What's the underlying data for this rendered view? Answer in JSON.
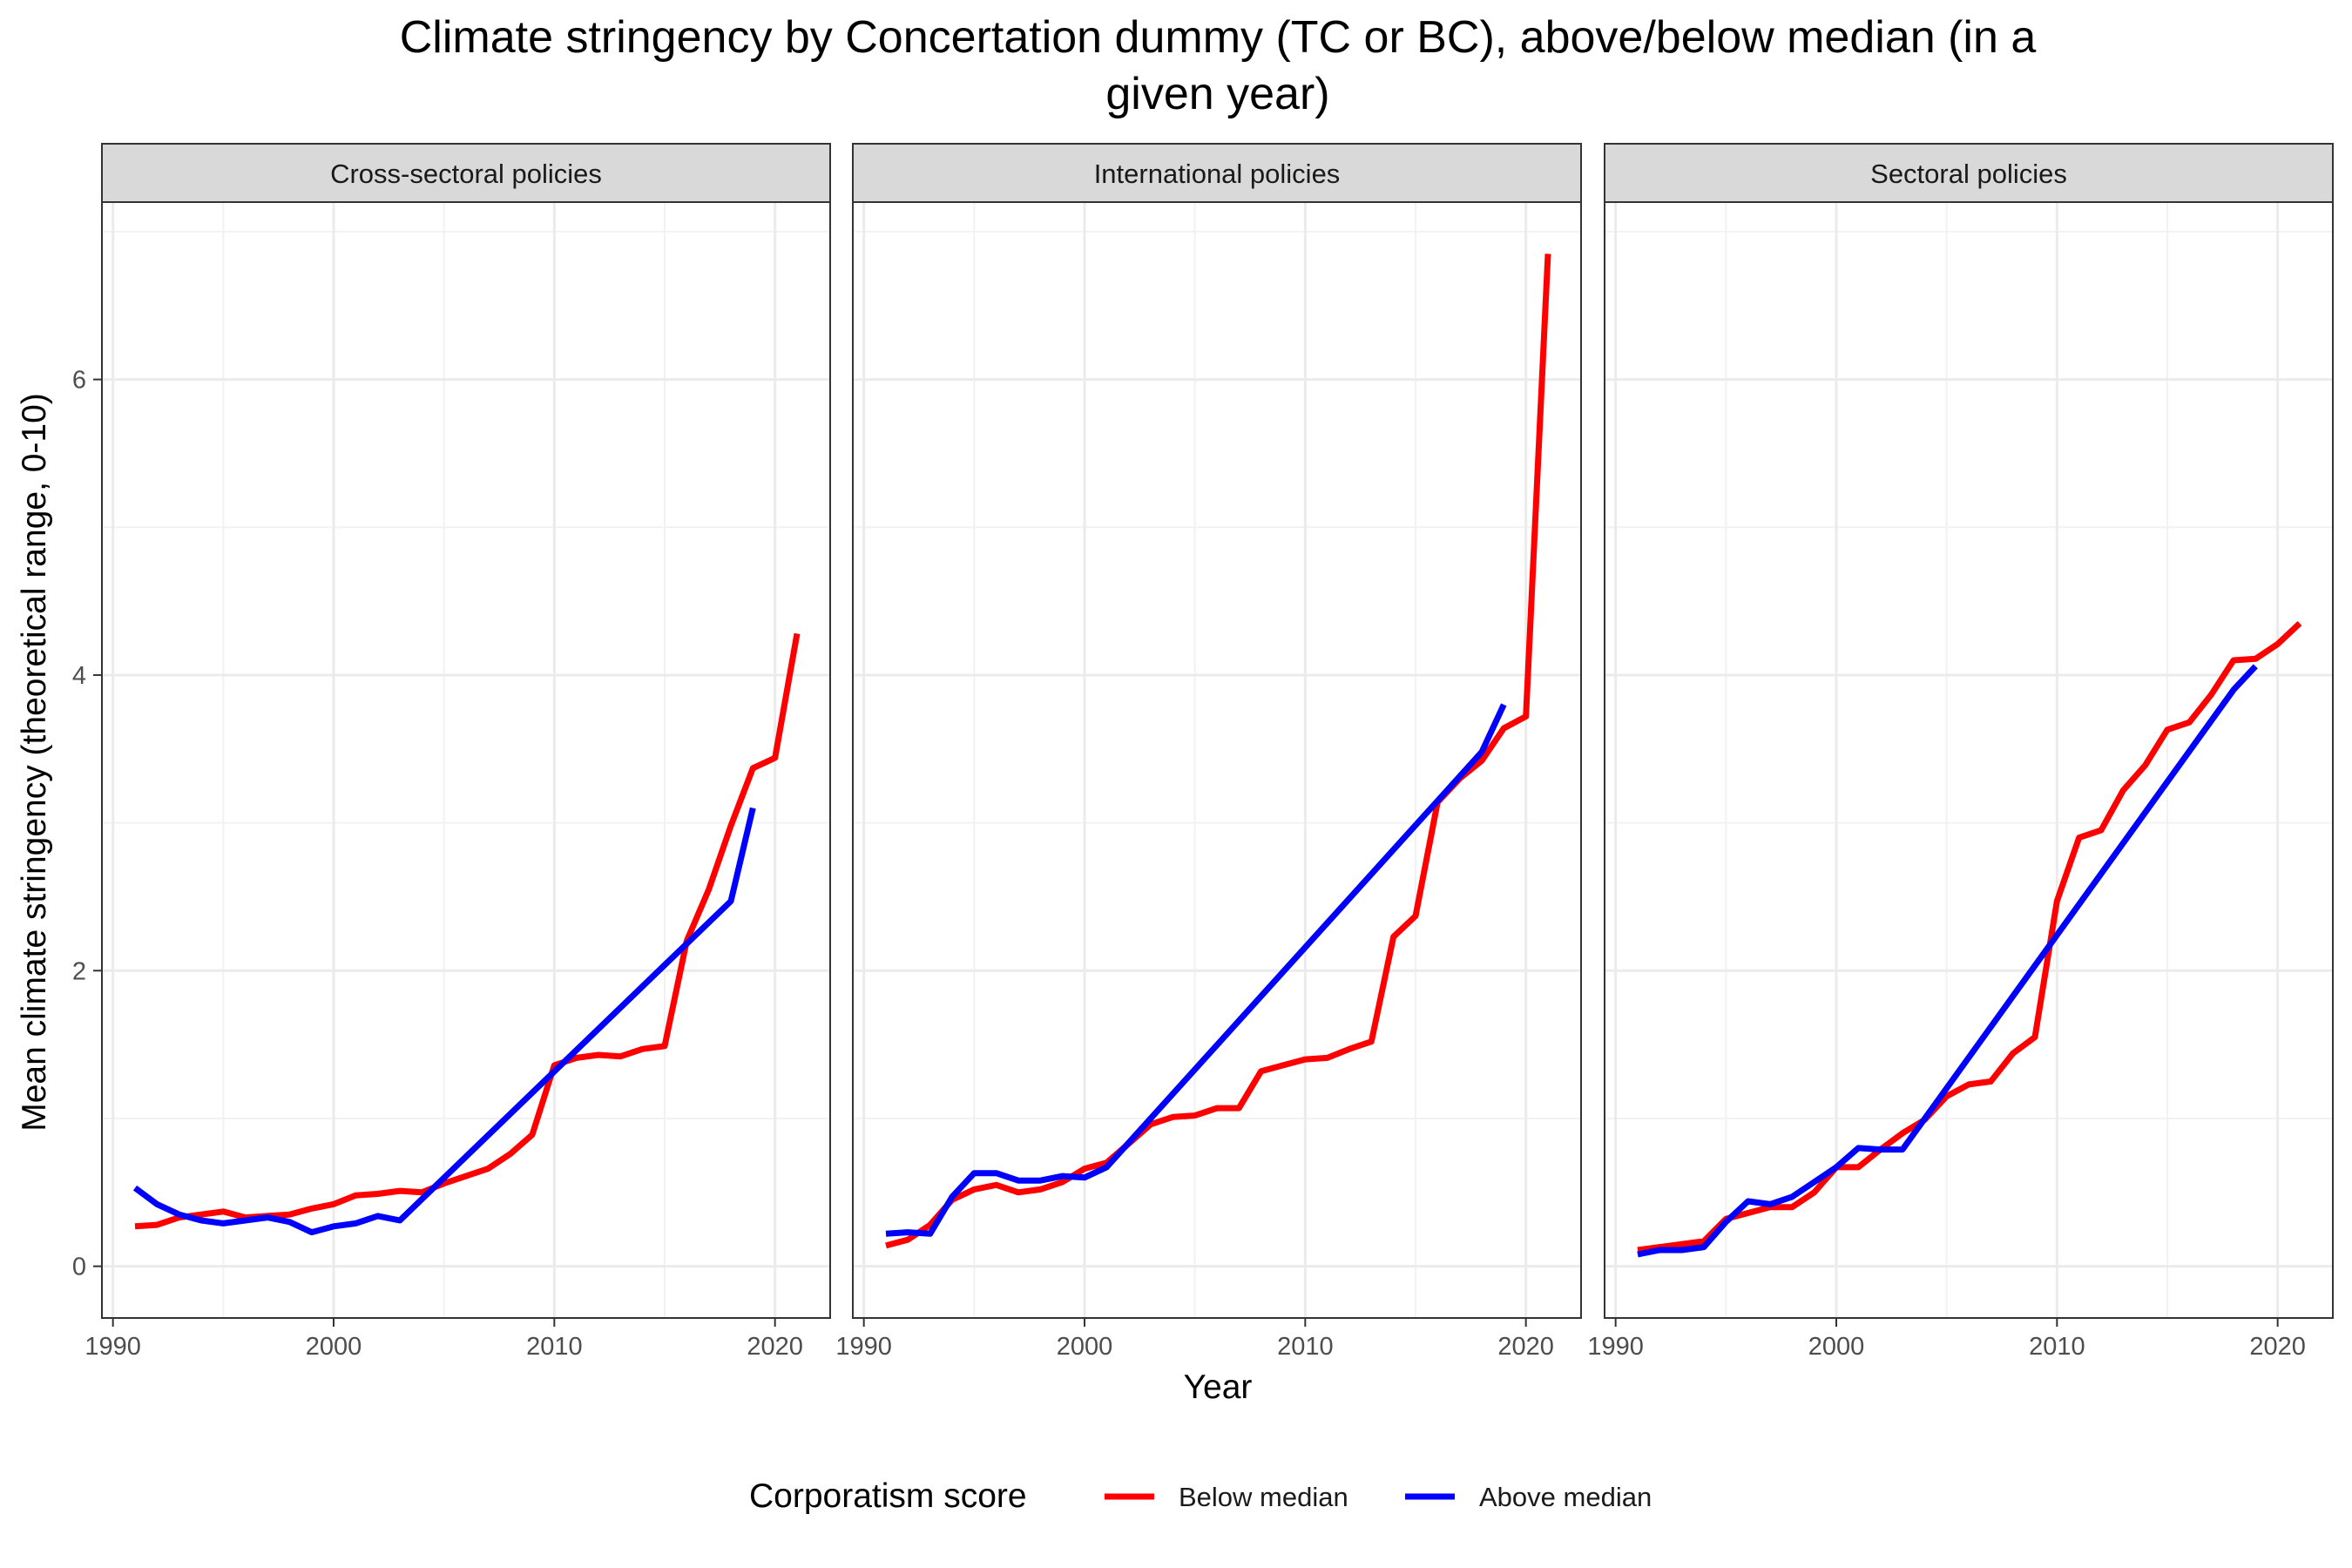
{
  "chart_data": {
    "type": "line",
    "title": "Climate stringency by Concertation dummy (TC or BC), above/below median (in a given year)",
    "title_lines": [
      "Climate stringency by Concertation dummy (TC or BC), above/below median (in a",
      "given year)"
    ],
    "xlabel": "Year",
    "ylabel": "Mean climate stringency (theoretical range, 0-10)",
    "xlim": [
      1989.5,
      2022.5
    ],
    "ylim": [
      -0.35,
      7.2
    ],
    "x_ticks": [
      1990,
      2000,
      2010,
      2020
    ],
    "y_ticks": [
      0,
      2,
      4,
      6
    ],
    "grid": true,
    "legend": {
      "title": "Corporatism score",
      "position": "bottom",
      "entries": [
        {
          "label": "Below median",
          "color": "#ff0000"
        },
        {
          "label": "Above median",
          "color": "#0000ff"
        }
      ]
    },
    "panels": [
      {
        "title": "Cross-sectoral policies",
        "series": [
          {
            "name": "Below median",
            "color": "#ff0000",
            "x": [
              1991,
              1992,
              1993,
              1994,
              1995,
              1996,
              1997,
              1998,
              1999,
              2000,
              2001,
              2002,
              2003,
              2004,
              2005,
              2006,
              2007,
              2008,
              2009,
              2010,
              2011,
              2012,
              2013,
              2014,
              2015,
              2016,
              2017,
              2018,
              2019,
              2020,
              2021
            ],
            "y": [
              0.27,
              0.28,
              0.33,
              0.35,
              0.37,
              0.33,
              0.34,
              0.35,
              0.39,
              0.42,
              0.48,
              0.49,
              0.51,
              0.5,
              0.56,
              0.61,
              0.66,
              0.76,
              0.89,
              1.36,
              1.41,
              1.43,
              1.42,
              1.47,
              1.49,
              2.2,
              2.55,
              2.98,
              3.37,
              3.44,
              4.28
            ]
          },
          {
            "name": "Above median",
            "color": "#0000ff",
            "x": [
              1991,
              1992,
              1993,
              1994,
              1995,
              1996,
              1997,
              1998,
              1999,
              2000,
              2001,
              2002,
              2003,
              2018,
              2019
            ],
            "y": [
              0.53,
              0.42,
              0.35,
              0.31,
              0.29,
              0.31,
              0.33,
              0.3,
              0.23,
              0.27,
              0.29,
              0.34,
              0.31,
              2.47,
              3.1
            ]
          }
        ]
      },
      {
        "title": "International policies",
        "series": [
          {
            "name": "Below median",
            "color": "#ff0000",
            "x": [
              1991,
              1992,
              1993,
              1994,
              1995,
              1996,
              1997,
              1998,
              1999,
              2000,
              2001,
              2002,
              2003,
              2004,
              2005,
              2006,
              2007,
              2008,
              2009,
              2010,
              2011,
              2012,
              2013,
              2014,
              2015,
              2016,
              2017,
              2018,
              2019,
              2020,
              2021
            ],
            "y": [
              0.14,
              0.18,
              0.28,
              0.45,
              0.52,
              0.55,
              0.5,
              0.52,
              0.57,
              0.66,
              0.7,
              0.83,
              0.96,
              1.01,
              1.02,
              1.07,
              1.07,
              1.32,
              1.36,
              1.4,
              1.41,
              1.47,
              1.52,
              2.23,
              2.37,
              3.14,
              3.3,
              3.42,
              3.64,
              3.72,
              6.85
            ]
          },
          {
            "name": "Above median",
            "color": "#0000ff",
            "x": [
              1991,
              1992,
              1993,
              1994,
              1995,
              1996,
              1997,
              1998,
              1999,
              2000,
              2001,
              2018,
              2019
            ],
            "y": [
              0.22,
              0.23,
              0.22,
              0.47,
              0.63,
              0.63,
              0.58,
              0.58,
              0.61,
              0.6,
              0.67,
              3.48,
              3.8
            ]
          }
        ]
      },
      {
        "title": "Sectoral policies",
        "series": [
          {
            "name": "Below median",
            "color": "#ff0000",
            "x": [
              1991,
              1992,
              1993,
              1994,
              1995,
              1996,
              1997,
              1998,
              1999,
              2000,
              2001,
              2002,
              2003,
              2004,
              2005,
              2006,
              2007,
              2008,
              2009,
              2010,
              2011,
              2012,
              2013,
              2014,
              2015,
              2016,
              2017,
              2018,
              2019,
              2020,
              2021
            ],
            "y": [
              0.11,
              0.13,
              0.15,
              0.17,
              0.32,
              0.36,
              0.4,
              0.4,
              0.5,
              0.67,
              0.67,
              0.79,
              0.9,
              0.99,
              1.15,
              1.23,
              1.25,
              1.44,
              1.55,
              2.47,
              2.9,
              2.95,
              3.22,
              3.39,
              3.63,
              3.68,
              3.87,
              4.1,
              4.11,
              4.21,
              4.35
            ]
          },
          {
            "name": "Above median",
            "color": "#0000ff",
            "x": [
              1991,
              1992,
              1993,
              1994,
              1995,
              1996,
              1997,
              1998,
              1999,
              2000,
              2001,
              2002,
              2003,
              2018,
              2019
            ],
            "y": [
              0.08,
              0.11,
              0.11,
              0.13,
              0.3,
              0.44,
              0.42,
              0.47,
              0.57,
              0.67,
              0.8,
              0.79,
              0.79,
              3.9,
              4.06
            ]
          }
        ]
      }
    ]
  }
}
